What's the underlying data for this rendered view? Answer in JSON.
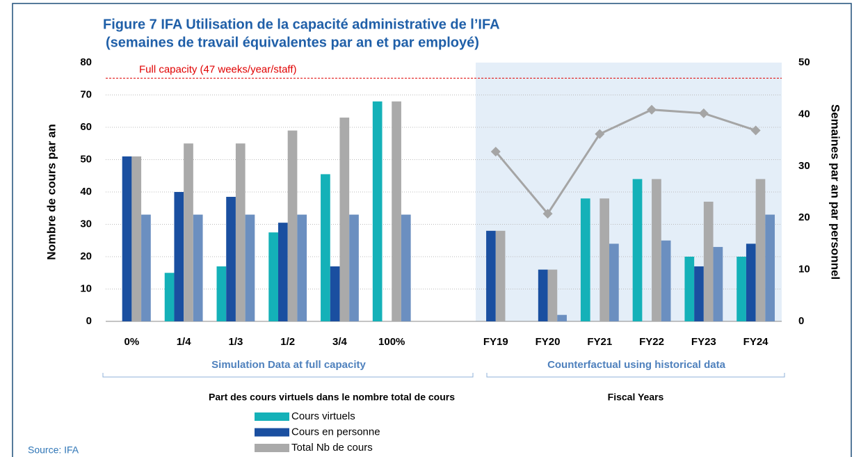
{
  "chart_data": {
    "type": "bar",
    "title": "Figure 7 IFA Utilisation de la capacité administrative de l’IFA",
    "subtitle": "(semaines de travail équivalentes par an et par employé)",
    "ylabel": "Nombre de cours par an",
    "y2label": "Semaines par an par personnel",
    "xlabels": [
      "Part des cours virtuels dans le nombre total de cours",
      "Fiscal Years"
    ],
    "group_labels": [
      "Simulation Data at full capacity",
      "Counterfactual using historical data"
    ],
    "source": "Source: IFA",
    "categories": [
      "0%",
      "1/4",
      "1/3",
      "1/2",
      "3/4",
      "100%",
      null,
      "FY19",
      "FY20",
      "FY21",
      "FY22",
      "FY23",
      "FY24"
    ],
    "series": [
      {
        "name": "Cours virtuels",
        "color": "#14b1b8",
        "values": [
          0,
          15,
          17,
          27.5,
          45.5,
          68,
          null,
          null,
          null,
          38,
          44,
          20,
          20
        ]
      },
      {
        "name": "Cours en personne",
        "color": "#1a4fa0",
        "values": [
          51,
          40,
          38.5,
          30.5,
          17,
          0,
          null,
          28,
          16,
          null,
          null,
          17,
          24
        ]
      },
      {
        "name": "Total Nb de cours",
        "color": "#aaaaaa",
        "values": [
          51,
          55,
          55,
          59,
          63,
          68,
          null,
          28,
          16,
          38,
          44,
          37,
          44
        ]
      },
      {
        "color": "#6b8fc0",
        "values": [
          33,
          33,
          33,
          33,
          33,
          33,
          null,
          null,
          2,
          24,
          25,
          23,
          33
        ]
      },
      {
        "type": "line",
        "axis": "y2",
        "color": "#a5a5a5",
        "values": [
          null,
          null,
          null,
          null,
          null,
          null,
          null,
          32.8,
          20.8,
          36.2,
          40.9,
          40.2,
          36.9
        ]
      }
    ],
    "reference_lines": [
      {
        "value": 47,
        "axis": "y2",
        "label": "Full capacity (47 weeks/year/staff)",
        "color": "#e00000"
      }
    ],
    "ylim": [
      0,
      80
    ],
    "yticks": [
      0,
      10,
      20,
      30,
      40,
      50,
      60,
      70,
      80
    ],
    "y2lim": [
      0,
      50
    ],
    "y2ticks": [
      0,
      10,
      20,
      30,
      40,
      50
    ],
    "grid": true
  }
}
